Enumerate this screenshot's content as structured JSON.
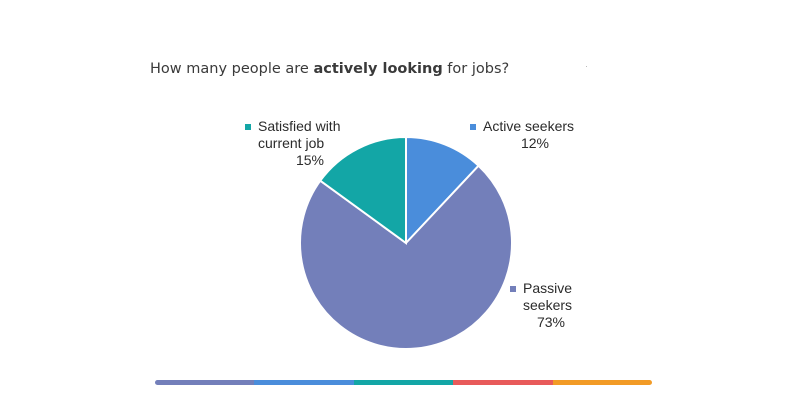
{
  "title": {
    "prefix": "How many people are ",
    "emphasis": "actively looking",
    "suffix": " for jobs?"
  },
  "chart_data": {
    "type": "pie",
    "title": "How many people are actively looking for jobs?",
    "start_angle_deg": 0,
    "slices": [
      {
        "name": "Active seekers",
        "label_lines": [
          "Active seekers"
        ],
        "value": 12,
        "value_label": "12%",
        "color": "#4a8ddb"
      },
      {
        "name": "Passive seekers",
        "label_lines": [
          "Passive",
          "seekers"
        ],
        "value": 73,
        "value_label": "73%",
        "color": "#737fba"
      },
      {
        "name": "Satisfied with current job",
        "label_lines": [
          "Satisfied with",
          "current job"
        ],
        "value": 15,
        "value_label": "15%",
        "color": "#13a6a6"
      }
    ]
  },
  "bottom_bar": {
    "colors": [
      "#737fba",
      "#4a8ddb",
      "#13a6a6",
      "#e85a5a",
      "#f29b26"
    ]
  }
}
